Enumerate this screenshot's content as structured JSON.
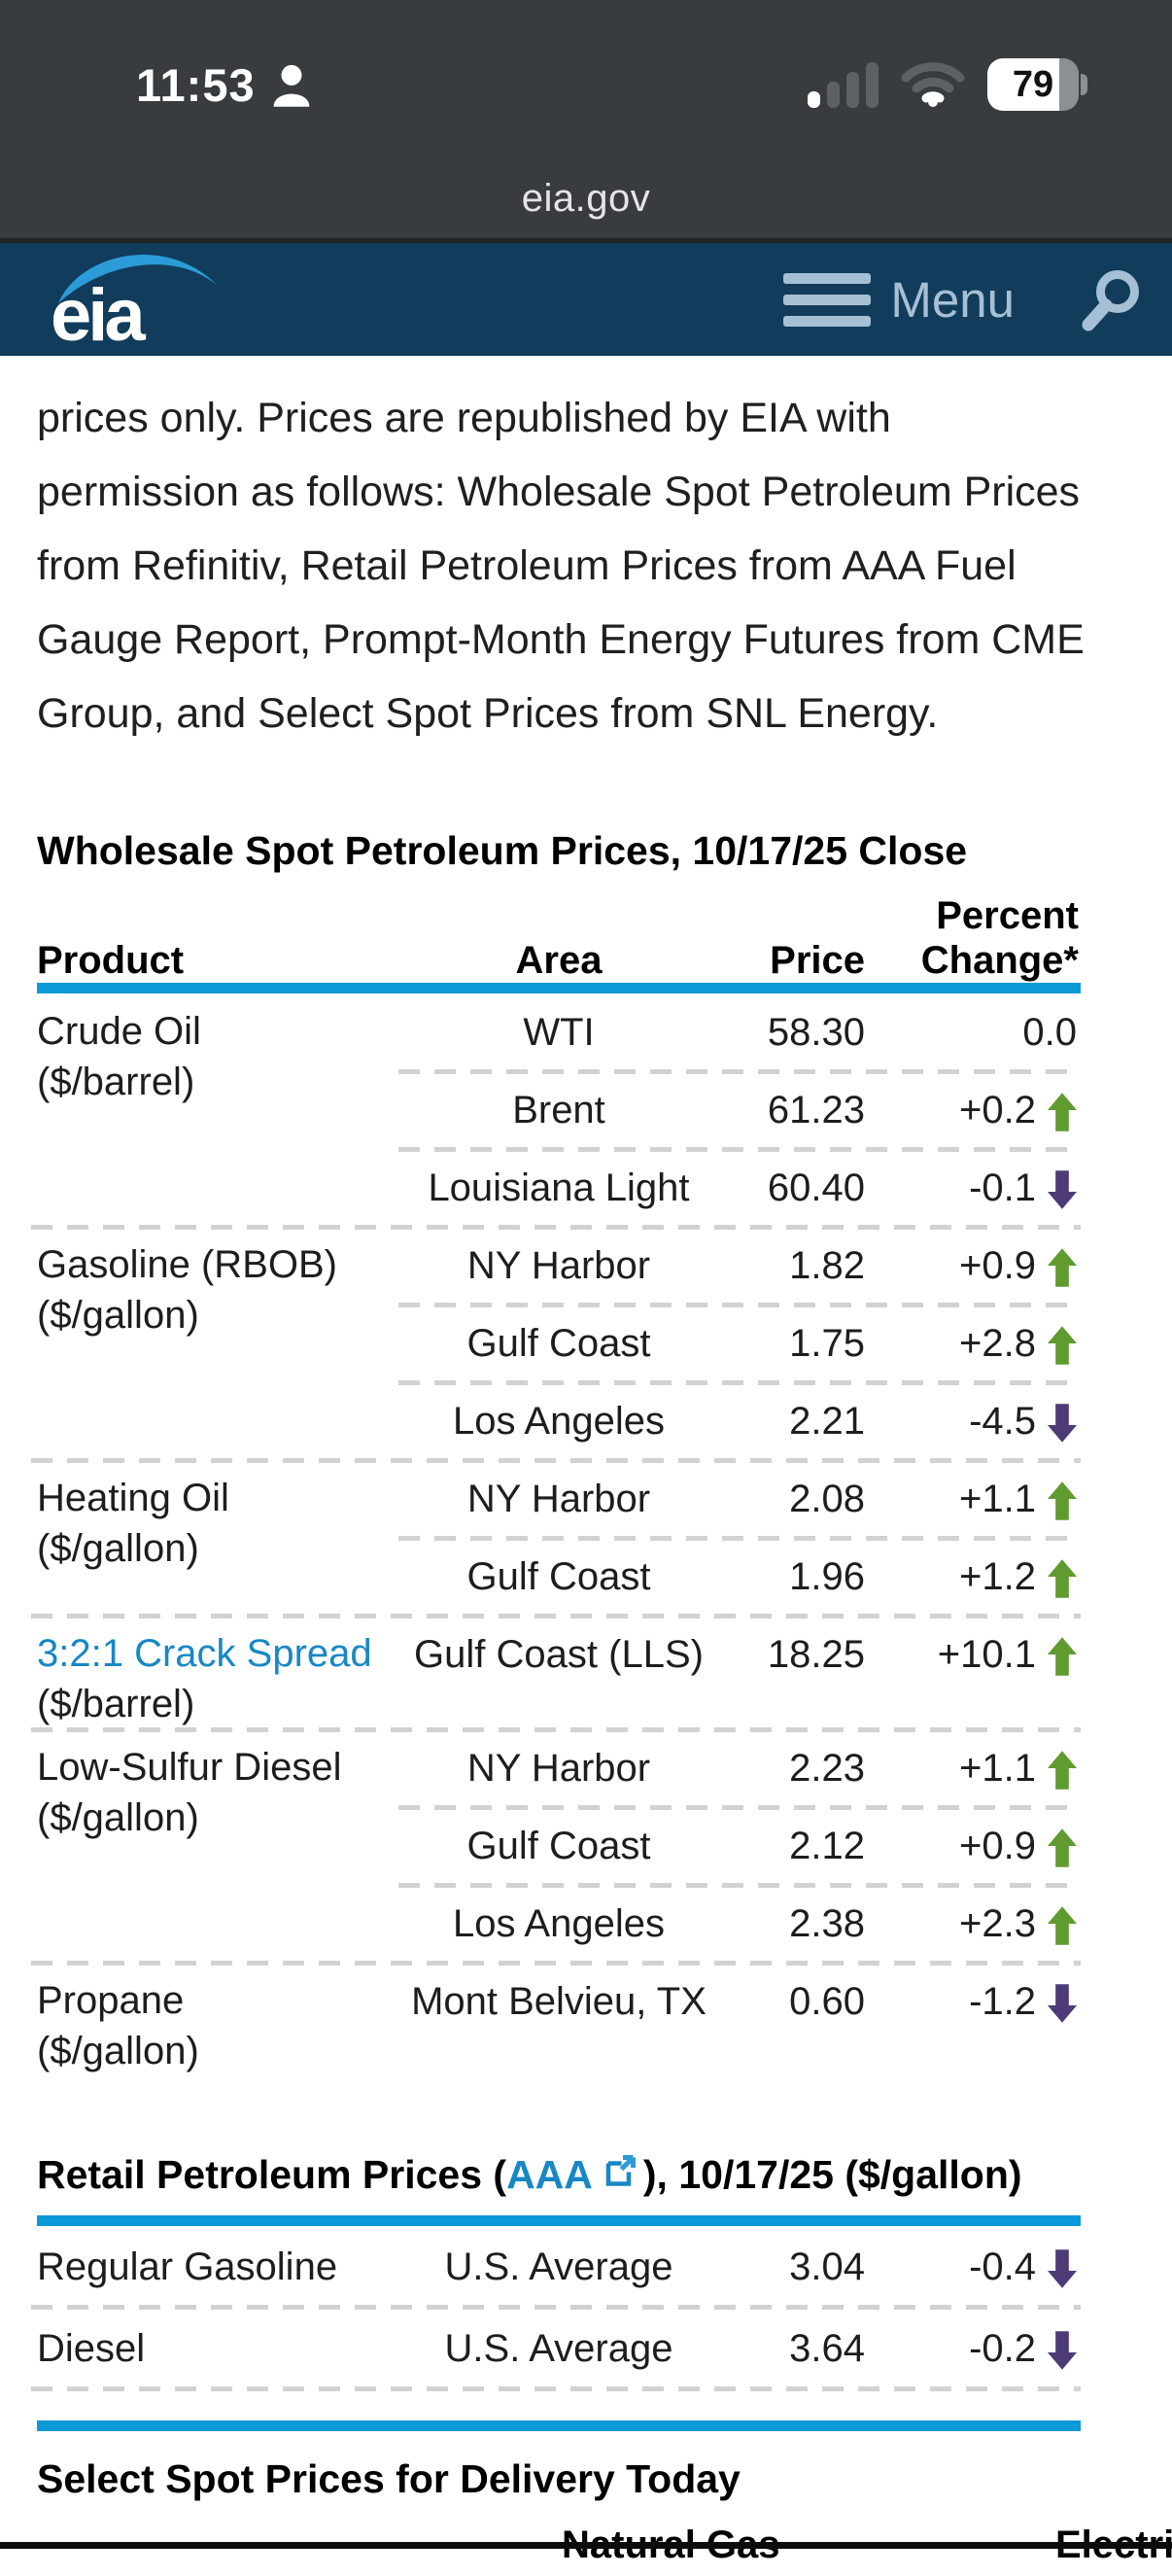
{
  "status_bar": {
    "time": "11:53",
    "battery_percent": "79",
    "url": "eia.gov"
  },
  "header": {
    "logo_text": "eia",
    "menu_label": "Menu"
  },
  "intro_lines": [
    "prices only. Prices are republished by EIA with",
    "permission as follows: Wholesale Spot Petroleum Prices",
    "from Refinitiv, Retail Petroleum Prices from AAA Fuel",
    "Gauge Report, Prompt-Month Energy Futures from CME",
    "Group, and Select Spot Prices from SNL Energy."
  ],
  "wholesale": {
    "title": "Wholesale Spot Petroleum Prices, 10/17/25 Close",
    "columns": {
      "product": "Product",
      "area": "Area",
      "price": "Price",
      "change": "Percent Change*"
    },
    "groups": [
      {
        "product": "Crude Oil",
        "unit": "($/barrel)",
        "is_link": false,
        "rows": [
          {
            "area": "WTI",
            "price": "58.30",
            "change": "0.0",
            "direction": "none"
          },
          {
            "area": "Brent",
            "price": "61.23",
            "change": "+0.2",
            "direction": "up"
          },
          {
            "area": "Louisiana Light",
            "price": "60.40",
            "change": "-0.1",
            "direction": "down"
          }
        ]
      },
      {
        "product": "Gasoline (RBOB)",
        "unit": "($/gallon)",
        "is_link": false,
        "rows": [
          {
            "area": "NY Harbor",
            "price": "1.82",
            "change": "+0.9",
            "direction": "up"
          },
          {
            "area": "Gulf Coast",
            "price": "1.75",
            "change": "+2.8",
            "direction": "up"
          },
          {
            "area": "Los Angeles",
            "price": "2.21",
            "change": "-4.5",
            "direction": "down"
          }
        ]
      },
      {
        "product": "Heating Oil",
        "unit": "($/gallon)",
        "is_link": false,
        "rows": [
          {
            "area": "NY Harbor",
            "price": "2.08",
            "change": "+1.1",
            "direction": "up"
          },
          {
            "area": "Gulf Coast",
            "price": "1.96",
            "change": "+1.2",
            "direction": "up"
          }
        ]
      },
      {
        "product": "3:2:1 Crack Spread",
        "unit": "($/barrel)",
        "is_link": true,
        "rows": [
          {
            "area": "Gulf Coast (LLS)",
            "price": "18.25",
            "change": "+10.1",
            "direction": "up"
          }
        ]
      },
      {
        "product": "Low-Sulfur Diesel",
        "unit": "($/gallon)",
        "is_link": false,
        "rows": [
          {
            "area": "NY Harbor",
            "price": "2.23",
            "change": "+1.1",
            "direction": "up"
          },
          {
            "area": "Gulf Coast",
            "price": "2.12",
            "change": "+0.9",
            "direction": "up"
          },
          {
            "area": "Los Angeles",
            "price": "2.38",
            "change": "+2.3",
            "direction": "up"
          }
        ]
      },
      {
        "product": "Propane",
        "unit": "($/gallon)",
        "is_link": false,
        "rows": [
          {
            "area": "Mont Belvieu, TX",
            "price": "0.60",
            "change": "-1.2",
            "direction": "down"
          }
        ]
      }
    ]
  },
  "retail": {
    "title_prefix": "Retail Petroleum Prices (",
    "link_label": "AAA",
    "title_suffix": "), 10/17/25 ($/gallon)",
    "rows": [
      {
        "product": "Regular Gasoline",
        "area": "U.S. Average",
        "price": "3.04",
        "change": "-0.4",
        "direction": "down"
      },
      {
        "product": "Diesel",
        "area": "U.S. Average",
        "price": "3.64",
        "change": "-0.2",
        "direction": "down"
      }
    ]
  },
  "select_spot": {
    "title": "Select Spot Prices for Delivery Today",
    "visible_columns": [
      "Natural Gas",
      "Electricity"
    ]
  },
  "colors": {
    "accent_blue": "#0c99d7",
    "link_blue": "#1787c6",
    "up_green": "#609b30",
    "down_purple": "#4c3b76",
    "header_navy": "#113c5b",
    "logo_blue": "#2b9cd8",
    "status_gray": "#383c3f"
  }
}
